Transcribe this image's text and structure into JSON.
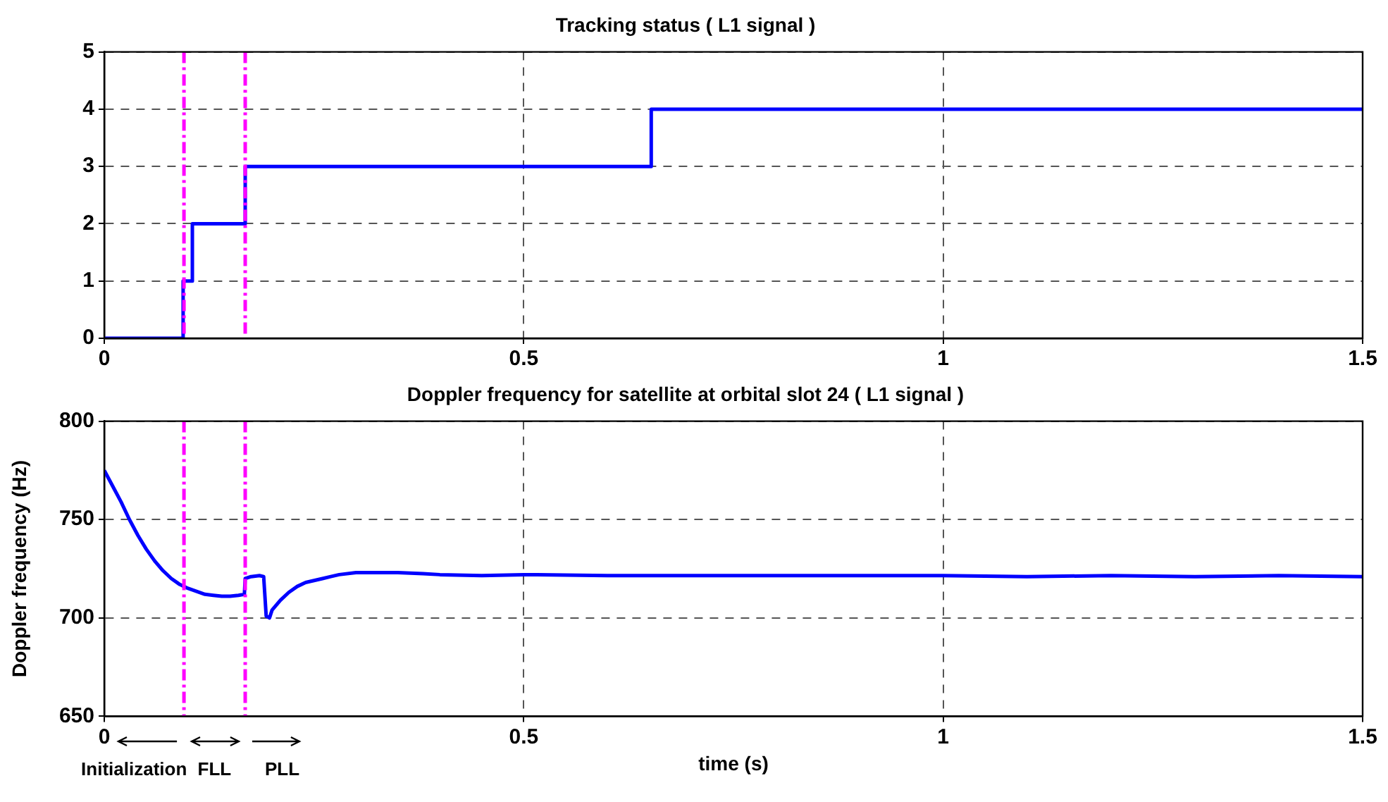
{
  "chart_data": [
    {
      "type": "step",
      "title": "Tracking status ( L1 signal )",
      "x": [
        0,
        0.094,
        0.105,
        0.168,
        0.652,
        1.5
      ],
      "series": [
        {
          "color": "#0000ff",
          "values": [
            0,
            1,
            2,
            3,
            4,
            4
          ]
        }
      ],
      "xlim": [
        0,
        1.5
      ],
      "xticks": [
        0,
        0.5,
        1,
        1.5
      ],
      "ylim": [
        0,
        5
      ],
      "yticks": [
        0,
        1,
        2,
        3,
        4,
        5
      ],
      "grid": true,
      "legend": false,
      "ref_lines": [
        {
          "axis": "x",
          "value": 0.095,
          "color": "#ff00ff"
        },
        {
          "axis": "x",
          "value": 0.168,
          "color": "#ff00ff"
        }
      ]
    },
    {
      "type": "line",
      "title": "Doppler frequency for satellite at orbital slot 24 ( L1 signal )",
      "xlabel": "time (s)",
      "ylabel": "Doppler frequency (Hz)",
      "x": [
        0,
        0.01,
        0.02,
        0.03,
        0.04,
        0.05,
        0.06,
        0.07,
        0.08,
        0.09,
        0.1,
        0.11,
        0.12,
        0.13,
        0.14,
        0.15,
        0.16,
        0.167,
        0.168,
        0.175,
        0.185,
        0.19,
        0.193,
        0.197,
        0.2,
        0.21,
        0.22,
        0.23,
        0.24,
        0.25,
        0.26,
        0.27,
        0.28,
        0.3,
        0.33,
        0.35,
        0.38,
        0.4,
        0.45,
        0.5,
        0.6,
        0.7,
        0.8,
        0.9,
        1.0,
        1.1,
        1.2,
        1.3,
        1.4,
        1.5
      ],
      "series": [
        {
          "color": "#0000ff",
          "values": [
            775,
            767,
            759,
            750,
            742,
            735,
            729,
            724,
            720,
            717,
            715,
            713.5,
            712,
            711.5,
            711,
            711,
            711.5,
            712,
            720,
            721,
            721.5,
            721,
            701,
            700,
            704,
            709,
            713,
            716,
            718,
            719,
            720,
            721,
            722,
            723,
            723,
            723,
            722.5,
            722,
            721.5,
            722,
            721.5,
            721.5,
            721.5,
            721.5,
            721.5,
            721,
            721.5,
            721,
            721.5,
            721
          ]
        }
      ],
      "xlim": [
        0,
        1.5
      ],
      "xticks": [
        0,
        0.5,
        1,
        1.5
      ],
      "ylim": [
        650,
        800
      ],
      "yticks": [
        650,
        700,
        750,
        800
      ],
      "grid": true,
      "legend": false,
      "ref_lines": [
        {
          "axis": "x",
          "value": 0.095,
          "color": "#ff00ff"
        },
        {
          "axis": "x",
          "value": 0.168,
          "color": "#ff00ff"
        }
      ],
      "annotations": [
        "Initialization",
        "FLL",
        "PLL"
      ]
    }
  ]
}
